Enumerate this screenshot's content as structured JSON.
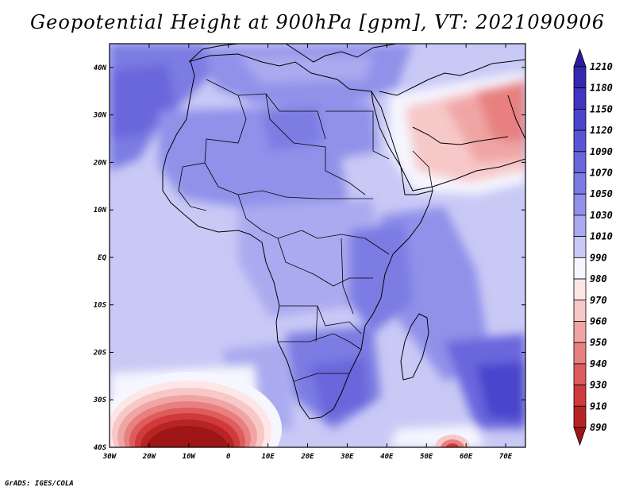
{
  "title": "Geopotential Height at 900hPa [gpm], VT: 2021090906",
  "credit": "GrADS: IGES/COLA",
  "map": {
    "variable": "Geopotential Height",
    "level": "900hPa",
    "units": "gpm",
    "valid_time": "2021090906",
    "lon_range": [
      -30,
      75
    ],
    "lat_range": [
      -40,
      45
    ],
    "lon_ticks": [
      "30W",
      "20W",
      "10W",
      "0",
      "10E",
      "20E",
      "30E",
      "40E",
      "50E",
      "60E",
      "70E"
    ],
    "lat_ticks": [
      "40N",
      "30N",
      "20N",
      "10N",
      "EQ",
      "10S",
      "20S",
      "30S",
      "40S"
    ]
  },
  "colorbar": {
    "levels": [
      "1210",
      "1180",
      "1150",
      "1120",
      "1090",
      "1070",
      "1050",
      "1030",
      "1010",
      "990",
      "980",
      "970",
      "960",
      "950",
      "940",
      "930",
      "910",
      "890"
    ],
    "colors": [
      "#2a1c9c",
      "#3428b0",
      "#3f35c2",
      "#4a44cc",
      "#5a55d4",
      "#6a66dc",
      "#7c7be3",
      "#9191ea",
      "#aaaaf0",
      "#c9c9f6",
      "#f6f6ff",
      "#ffe6e6",
      "#f7c8c8",
      "#f0a5a5",
      "#e88080",
      "#de5c5c",
      "#d03a3a",
      "#b82424",
      "#9e1616"
    ]
  }
}
